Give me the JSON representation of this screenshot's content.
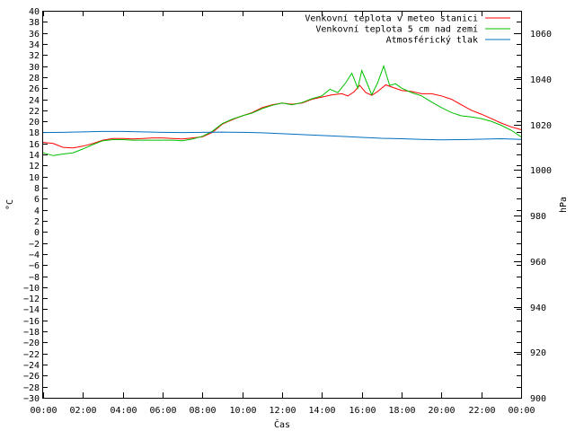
{
  "chart_data": {
    "type": "line",
    "xlabel": "Čas",
    "ylabel_left": "°C",
    "ylabel_right": "hPa",
    "y_left_range": [
      -30,
      40
    ],
    "y_left_ticks": [
      -30,
      -28,
      -26,
      -24,
      -22,
      -20,
      -18,
      -16,
      -14,
      -12,
      -10,
      -8,
      -6,
      -4,
      -2,
      0,
      2,
      4,
      6,
      8,
      10,
      12,
      14,
      16,
      18,
      20,
      22,
      24,
      26,
      28,
      30,
      32,
      34,
      36,
      38,
      40
    ],
    "y_right_range": [
      900,
      1070
    ],
    "y_right_ticks": [
      900,
      920,
      940,
      960,
      980,
      1000,
      1020,
      1040,
      1060
    ],
    "x_range_hours": [
      0,
      24
    ],
    "x_ticks": [
      "00:00",
      "02:00",
      "04:00",
      "06:00",
      "08:00",
      "10:00",
      "12:00",
      "14:00",
      "16:00",
      "18:00",
      "20:00",
      "22:00",
      "00:00"
    ],
    "legend_position": "top-right",
    "series": [
      {
        "name": "Venkovní teplota v meteo stanici",
        "color": "#ff0000",
        "axis": "left",
        "points": [
          [
            0,
            16.2
          ],
          [
            0.5,
            16.0
          ],
          [
            1,
            15.3
          ],
          [
            1.5,
            15.2
          ],
          [
            2,
            15.5
          ],
          [
            2.5,
            16.0
          ],
          [
            3,
            16.6
          ],
          [
            3.5,
            16.9
          ],
          [
            4,
            16.9
          ],
          [
            4.5,
            16.8
          ],
          [
            5,
            16.9
          ],
          [
            5.5,
            17.0
          ],
          [
            6,
            17.0
          ],
          [
            6.5,
            16.9
          ],
          [
            7,
            16.8
          ],
          [
            7.5,
            17.0
          ],
          [
            8,
            17.2
          ],
          [
            8.5,
            18.0
          ],
          [
            9,
            19.5
          ],
          [
            9.5,
            20.3
          ],
          [
            10,
            21.0
          ],
          [
            10.5,
            21.6
          ],
          [
            11,
            22.5
          ],
          [
            11.5,
            23.0
          ],
          [
            12,
            23.3
          ],
          [
            12.5,
            23.1
          ],
          [
            13,
            23.3
          ],
          [
            13.5,
            24.0
          ],
          [
            14,
            24.4
          ],
          [
            14.5,
            24.8
          ],
          [
            15,
            25.0
          ],
          [
            15.3,
            24.6
          ],
          [
            15.6,
            25.3
          ],
          [
            15.9,
            26.5
          ],
          [
            16.2,
            25.2
          ],
          [
            16.5,
            24.7
          ],
          [
            16.8,
            25.4
          ],
          [
            17.2,
            26.6
          ],
          [
            17.6,
            26.1
          ],
          [
            18,
            25.6
          ],
          [
            18.5,
            25.4
          ],
          [
            19,
            25.0
          ],
          [
            19.5,
            25.0
          ],
          [
            20,
            24.6
          ],
          [
            20.5,
            24.0
          ],
          [
            21,
            23.0
          ],
          [
            21.5,
            22.0
          ],
          [
            22,
            21.3
          ],
          [
            22.5,
            20.5
          ],
          [
            23,
            19.7
          ],
          [
            23.5,
            19.0
          ],
          [
            24,
            18.5
          ]
        ]
      },
      {
        "name": "Venkovní teplota 5 cm nad zemí",
        "color": "#00c000",
        "axis": "left",
        "points": [
          [
            0,
            14.3
          ],
          [
            0.5,
            13.8
          ],
          [
            1,
            14.1
          ],
          [
            1.5,
            14.3
          ],
          [
            2,
            15.0
          ],
          [
            2.5,
            15.8
          ],
          [
            3,
            16.5
          ],
          [
            3.5,
            16.7
          ],
          [
            4,
            16.7
          ],
          [
            4.5,
            16.6
          ],
          [
            5,
            16.6
          ],
          [
            5.5,
            16.6
          ],
          [
            6,
            16.6
          ],
          [
            6.5,
            16.6
          ],
          [
            7,
            16.5
          ],
          [
            7.5,
            16.8
          ],
          [
            8,
            17.3
          ],
          [
            8.5,
            18.2
          ],
          [
            9,
            19.6
          ],
          [
            9.5,
            20.4
          ],
          [
            10,
            21.0
          ],
          [
            10.5,
            21.5
          ],
          [
            11,
            22.3
          ],
          [
            11.5,
            22.9
          ],
          [
            12,
            23.3
          ],
          [
            12.5,
            23.0
          ],
          [
            13,
            23.4
          ],
          [
            13.5,
            24.1
          ],
          [
            14,
            24.6
          ],
          [
            14.4,
            25.8
          ],
          [
            14.8,
            25.2
          ],
          [
            15.2,
            27.0
          ],
          [
            15.5,
            28.7
          ],
          [
            15.8,
            26.0
          ],
          [
            16,
            29.2
          ],
          [
            16.2,
            27.5
          ],
          [
            16.5,
            24.8
          ],
          [
            16.8,
            27.0
          ],
          [
            17.1,
            30.0
          ],
          [
            17.4,
            26.5
          ],
          [
            17.7,
            26.8
          ],
          [
            18,
            26.0
          ],
          [
            18.5,
            25.2
          ],
          [
            19,
            24.6
          ],
          [
            19.5,
            23.5
          ],
          [
            20,
            22.5
          ],
          [
            20.5,
            21.6
          ],
          [
            21,
            21.0
          ],
          [
            21.5,
            20.8
          ],
          [
            22,
            20.5
          ],
          [
            22.5,
            20.0
          ],
          [
            23,
            19.3
          ],
          [
            23.5,
            18.4
          ],
          [
            24,
            17.2
          ]
        ]
      },
      {
        "name": "Atmosférický tlak",
        "color": "#0070c0",
        "axis": "right",
        "points": [
          [
            0,
            1016.5
          ],
          [
            1,
            1016.6
          ],
          [
            2,
            1016.8
          ],
          [
            3,
            1017.0
          ],
          [
            4,
            1017.0
          ],
          [
            5,
            1016.8
          ],
          [
            6,
            1016.6
          ],
          [
            7,
            1016.5
          ],
          [
            8,
            1016.6
          ],
          [
            9,
            1016.7
          ],
          [
            10,
            1016.6
          ],
          [
            11,
            1016.4
          ],
          [
            12,
            1016.0
          ],
          [
            13,
            1015.6
          ],
          [
            14,
            1015.2
          ],
          [
            15,
            1014.8
          ],
          [
            16,
            1014.4
          ],
          [
            17,
            1014.0
          ],
          [
            18,
            1013.8
          ],
          [
            19,
            1013.5
          ],
          [
            20,
            1013.3
          ],
          [
            21,
            1013.4
          ],
          [
            22,
            1013.6
          ],
          [
            23,
            1013.8
          ],
          [
            24,
            1013.5
          ]
        ]
      }
    ]
  }
}
